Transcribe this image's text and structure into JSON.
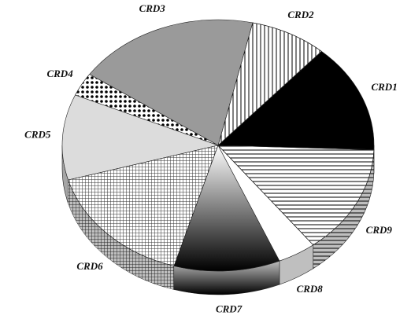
{
  "chart_data": {
    "type": "pie",
    "categories": [
      "CRD1",
      "CRD2",
      "CRD3",
      "CRD4",
      "CRD5",
      "CRD6",
      "CRD7",
      "CRD8",
      "CRD9"
    ],
    "values": [
      14,
      8,
      19,
      3,
      11,
      16,
      11,
      4,
      14
    ],
    "colors": [
      "#000000",
      "#ffffff",
      "#9a9a9a",
      "#ffffff",
      "#dcdcdc",
      "#ffffff",
      "#555555",
      "#ffffff",
      "#ffffff"
    ],
    "start_angle": 92,
    "direction": "counterclockwise",
    "three_d": true
  }
}
